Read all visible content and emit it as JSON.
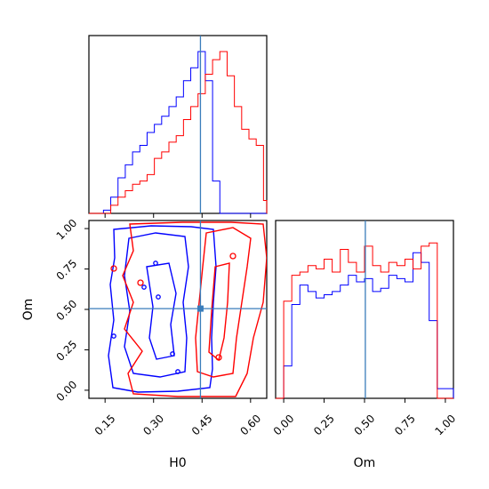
{
  "chart_data": [
    {
      "type": "histogram",
      "panel": "H0 marginal",
      "xlim": [
        0.1,
        0.65
      ],
      "truth": 0.445,
      "bin_edges": [
        0.1,
        0.1225,
        0.145,
        0.1675,
        0.19,
        0.2125,
        0.235,
        0.2575,
        0.28,
        0.3025,
        0.325,
        0.3475,
        0.37,
        0.3925,
        0.415,
        0.4375,
        0.46,
        0.4825,
        0.505,
        0.5275,
        0.55,
        0.5725,
        0.595,
        0.6175,
        0.64,
        0.65
      ],
      "series": [
        {
          "color": "#0000ff",
          "values": [
            0,
            0,
            0.02,
            0.1,
            0.22,
            0.3,
            0.38,
            0.42,
            0.5,
            0.55,
            0.6,
            0.66,
            0.72,
            0.82,
            0.9,
            1.0,
            0.82,
            0.2,
            0.0,
            0.0,
            0.0,
            0.0,
            0.0,
            0.0,
            0.0
          ]
        },
        {
          "color": "#ff0000",
          "values": [
            0,
            0,
            0,
            0.05,
            0.1,
            0.14,
            0.18,
            0.2,
            0.24,
            0.34,
            0.38,
            0.44,
            0.48,
            0.58,
            0.66,
            0.74,
            0.86,
            0.95,
            1.0,
            0.85,
            0.66,
            0.52,
            0.46,
            0.42,
            0.08
          ]
        }
      ]
    },
    {
      "type": "contour",
      "panel": "H0 vs Om joint",
      "xlabel": "H0",
      "ylabel": "Om",
      "xlim": [
        0.1,
        0.65
      ],
      "ylim": [
        -0.05,
        1.05
      ],
      "xticks": [
        "0.15",
        "0.30",
        "0.45",
        "0.60"
      ],
      "yticks": [
        "0.00",
        "0.25",
        "0.50",
        "0.75",
        "1.00"
      ],
      "truth": [
        0.445,
        0.505
      ],
      "series": [
        {
          "color": "#0000ff",
          "center": [
            0.35,
            0.5
          ],
          "levels_sigma": [
            0.5,
            1.0,
            1.6
          ]
        },
        {
          "color": "#ff0000",
          "center": [
            0.46,
            0.5
          ],
          "levels_sigma": [
            0.5,
            1.0,
            1.6
          ]
        }
      ]
    },
    {
      "type": "histogram",
      "panel": "Om marginal",
      "xlabel": "Om",
      "xlim": [
        -0.05,
        1.05
      ],
      "xticks": [
        "0.00",
        "0.25",
        "0.50",
        "0.75",
        "1.00"
      ],
      "truth": 0.505,
      "bin_edges": [
        -0.05,
        0.0,
        0.05,
        0.1,
        0.15,
        0.2,
        0.25,
        0.3,
        0.35,
        0.4,
        0.45,
        0.5,
        0.55,
        0.6,
        0.65,
        0.7,
        0.75,
        0.8,
        0.85,
        0.9,
        0.95,
        1.0,
        1.05
      ],
      "series": [
        {
          "color": "#0000ff",
          "values": [
            0.0,
            0.2,
            0.58,
            0.7,
            0.66,
            0.62,
            0.64,
            0.66,
            0.7,
            0.76,
            0.72,
            0.74,
            0.66,
            0.68,
            0.76,
            0.74,
            0.72,
            0.9,
            0.84,
            0.48,
            0.06,
            0.06
          ]
        },
        {
          "color": "#ff0000",
          "values": [
            0.0,
            0.6,
            0.76,
            0.78,
            0.82,
            0.8,
            0.86,
            0.78,
            0.92,
            0.84,
            0.78,
            0.94,
            0.82,
            0.78,
            0.84,
            0.82,
            0.86,
            0.8,
            0.94,
            0.96,
            0.0,
            0.0
          ]
        }
      ]
    }
  ]
}
